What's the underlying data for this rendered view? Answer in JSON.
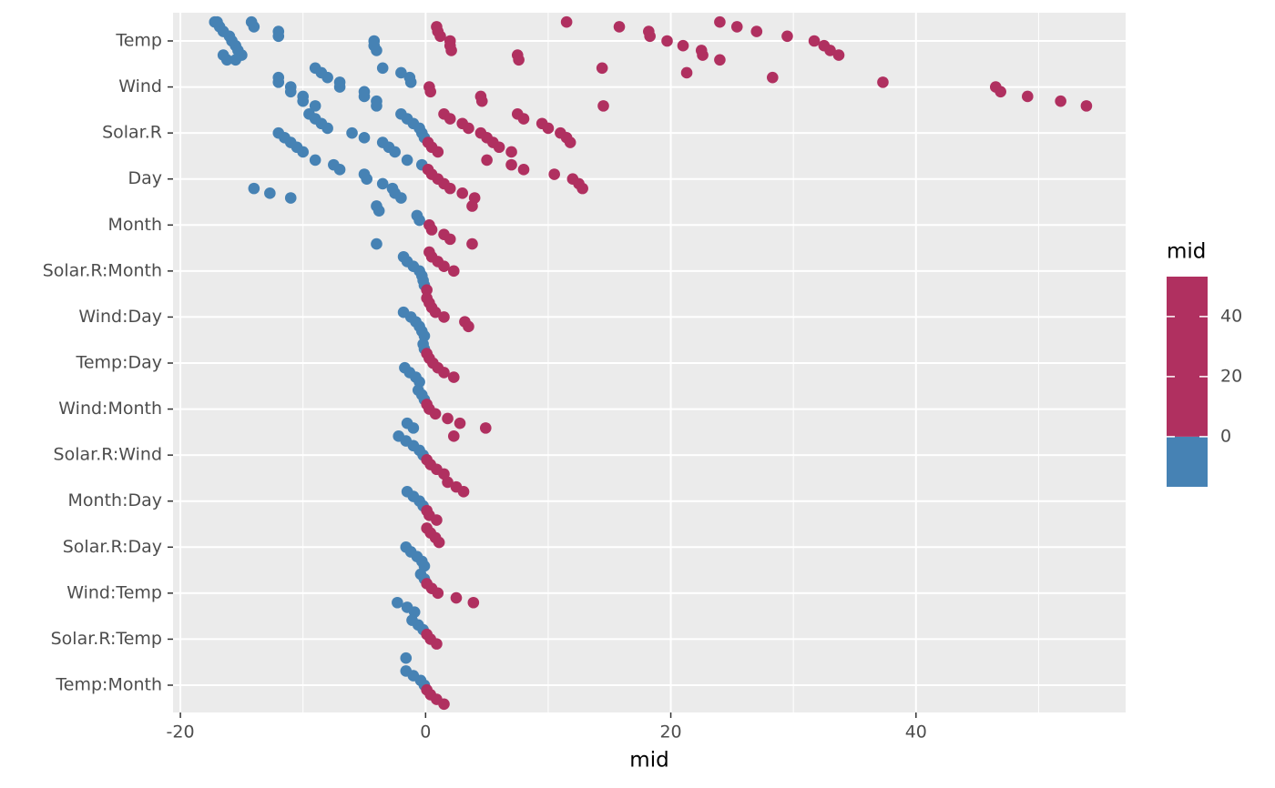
{
  "chart_data": {
    "type": "scatter",
    "x_label": "mid",
    "categories": [
      "Temp",
      "Wind",
      "Solar.R",
      "Day",
      "Month",
      "Solar.R:Month",
      "Wind:Day",
      "Temp:Day",
      "Wind:Month",
      "Solar.R:Wind",
      "Month:Day",
      "Solar.R:Day",
      "Wind:Temp",
      "Solar.R:Temp",
      "Temp:Month"
    ],
    "values": [
      [
        -17,
        -16.8,
        -16.5,
        -16,
        -15.8,
        -15.5,
        -15.3,
        -15,
        -16.2,
        -17.2,
        -14,
        -12,
        -12,
        -4.2,
        -4.2,
        -4,
        -16.5,
        -15.5,
        -14.2,
        0.9,
        1,
        1.2,
        2,
        2,
        2.1,
        7.5,
        7.6,
        11.5,
        15.8,
        18.2,
        18.3,
        19.7,
        21,
        22.5,
        22.6,
        24,
        24,
        25.4,
        27,
        29.5,
        31.7,
        32.5,
        33,
        33.7
      ],
      [
        -12,
        -12,
        -11,
        -11,
        -10,
        -10,
        -9,
        -9,
        -8.5,
        -8,
        -7,
        -7,
        -5,
        -5,
        -4,
        -4,
        -3.5,
        -2,
        -1.3,
        -1.2,
        0.3,
        0.4,
        4.5,
        4.6,
        14.5,
        14.4,
        21.3,
        28.3,
        37.3,
        46.5,
        46.9,
        49.1,
        51.8,
        53.9
      ],
      [
        -12,
        -11.5,
        -11,
        -10.5,
        -10,
        -9.5,
        -9,
        -8.5,
        -8,
        -6,
        -5,
        -3.5,
        -3,
        -2.5,
        -2,
        -1.5,
        -1,
        -0.5,
        -0.3,
        -0.1,
        0.2,
        0.5,
        1,
        1.5,
        2,
        3,
        3.5,
        4.5,
        5,
        5.5,
        6,
        7,
        7.5,
        8,
        9.5,
        10,
        11,
        11.5,
        11.8
      ],
      [
        -14,
        -12.7,
        -11,
        -9,
        -7.5,
        -7,
        -5,
        -4.8,
        -3.5,
        -2.7,
        -2.5,
        -2,
        -1.5,
        -0.3,
        0.2,
        0.5,
        1,
        1.5,
        2,
        3,
        4,
        5,
        7,
        8,
        10.5,
        12,
        12.5,
        12.8
      ],
      [
        -4,
        -4,
        -3.8,
        -0.7,
        -0.5,
        0.3,
        0.5,
        1.5,
        2,
        3.8,
        3.8
      ],
      [
        -1.8,
        -1.5,
        -1,
        -0.5,
        -0.3,
        -0.2,
        -0.1,
        0.1,
        0.3,
        0.5,
        1,
        1.5,
        2.3
      ],
      [
        -1.8,
        -1.2,
        -0.8,
        -0.5,
        -0.3,
        -0.1,
        0.1,
        0.3,
        0.5,
        0.8,
        1.5,
        3.2,
        3.5
      ],
      [
        -1.7,
        -1.3,
        -0.8,
        -0.5,
        -0.2,
        -0.1,
        0.1,
        0.3,
        0.6,
        1,
        1.5,
        2.3
      ],
      [
        -1.5,
        -1,
        -0.6,
        -0.3,
        -0.1,
        0.1,
        0.3,
        0.8,
        1.8,
        2.8,
        4.9
      ],
      [
        -2.2,
        -1.6,
        -1,
        -0.5,
        -0.2,
        0.1,
        0.4,
        0.9,
        1.5,
        2.3
      ],
      [
        -1.5,
        -1,
        -0.5,
        -0.2,
        0.1,
        0.3,
        0.9,
        1.8,
        2.5,
        3.1
      ],
      [
        -1.6,
        -1.2,
        -0.7,
        -0.3,
        -0.1,
        0.1,
        0.4,
        0.8,
        1.1
      ],
      [
        -2.3,
        -1.5,
        -0.9,
        -0.4,
        -0.1,
        0.1,
        0.5,
        1,
        2.5,
        3.9
      ],
      [
        -1.6,
        -1.1,
        -0.6,
        -0.2,
        0.1,
        0.4,
        0.9
      ],
      [
        -1.6,
        -1,
        -0.4,
        -0.1,
        0.1,
        0.4,
        0.9,
        1.5
      ]
    ],
    "xlim": [
      -20.6,
      57.1
    ],
    "xticks": [
      -20,
      0,
      20,
      40
    ],
    "x_minor_grid": [
      -10,
      10,
      30,
      50
    ],
    "grid": true,
    "colorbar": {
      "title": "mid",
      "limits": [
        -16.7,
        53.3
      ],
      "ticks": [
        0,
        20,
        40
      ],
      "negative_color": "#4682b4",
      "positive_color": "#b03060"
    }
  }
}
